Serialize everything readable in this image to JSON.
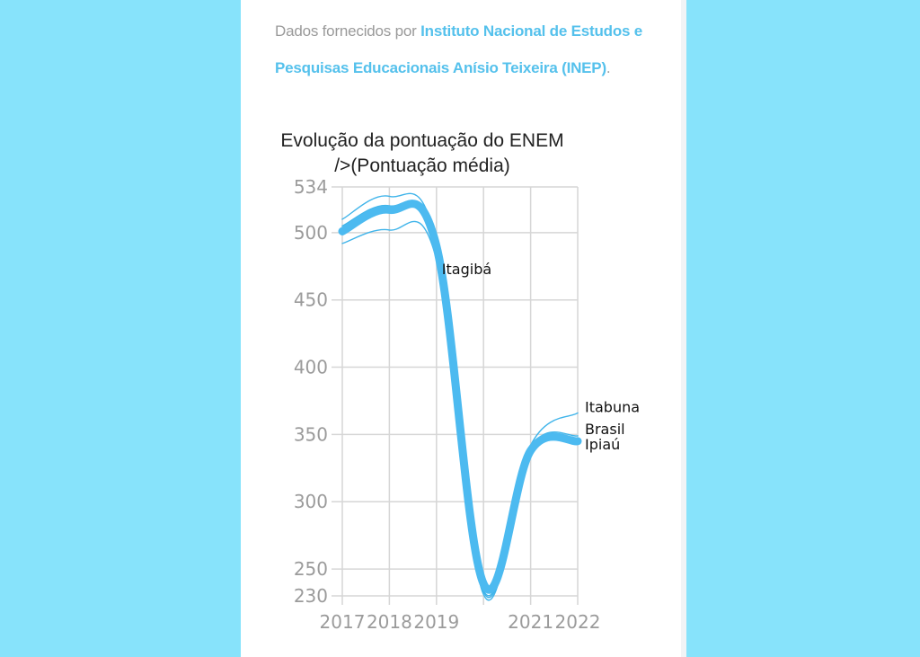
{
  "source": {
    "prefix": "Dados fornecidos por",
    "org": "Instituto Nacional de Estudos e Pesquisas Educacionais Anísio Teixeira (INEP)",
    "suffix": "."
  },
  "colors": {
    "background": "#87e3fb",
    "accent": "#55c1ec",
    "thin_series": "#3fb4ea",
    "main_series": "#4cbaf0",
    "grid": "#d6d6d6"
  },
  "chart_data": {
    "type": "line",
    "title_lines": [
      "Evolução da pontuação do ENEM",
      "/>(Pontuação média)"
    ],
    "xlabel": "",
    "ylabel": "",
    "x": [
      2017,
      2018,
      2019,
      2020,
      2021,
      2022
    ],
    "x_tick_labels": [
      "2017",
      "2018",
      "2019",
      "",
      "2021",
      "2022"
    ],
    "ylim": [
      230,
      534
    ],
    "y_ticks": [
      230,
      250,
      300,
      350,
      400,
      450,
      500,
      534
    ],
    "grid": true,
    "series": [
      {
        "name": "Itabuna",
        "values": [
          510,
          527,
          493,
          231,
          342,
          366
        ],
        "emphasis": false
      },
      {
        "name": "Brasil",
        "values": [
          505,
          520,
          491,
          233,
          340,
          349
        ],
        "emphasis": false
      },
      {
        "name": "Itagibá",
        "values": [
          492,
          502,
          480,
          234,
          338,
          345
        ],
        "emphasis": false
      },
      {
        "name": "Ipiaú",
        "values": [
          501,
          517,
          490,
          239,
          338,
          345
        ],
        "emphasis": true
      }
    ],
    "annotations": [
      {
        "text": "Itagibá",
        "series": "Itagibá"
      },
      {
        "text": "Itabuna",
        "series": "Itabuna"
      },
      {
        "text": "Brasil",
        "series": "Brasil"
      },
      {
        "text": "Ipiaú",
        "series": "Ipiaú"
      }
    ]
  }
}
